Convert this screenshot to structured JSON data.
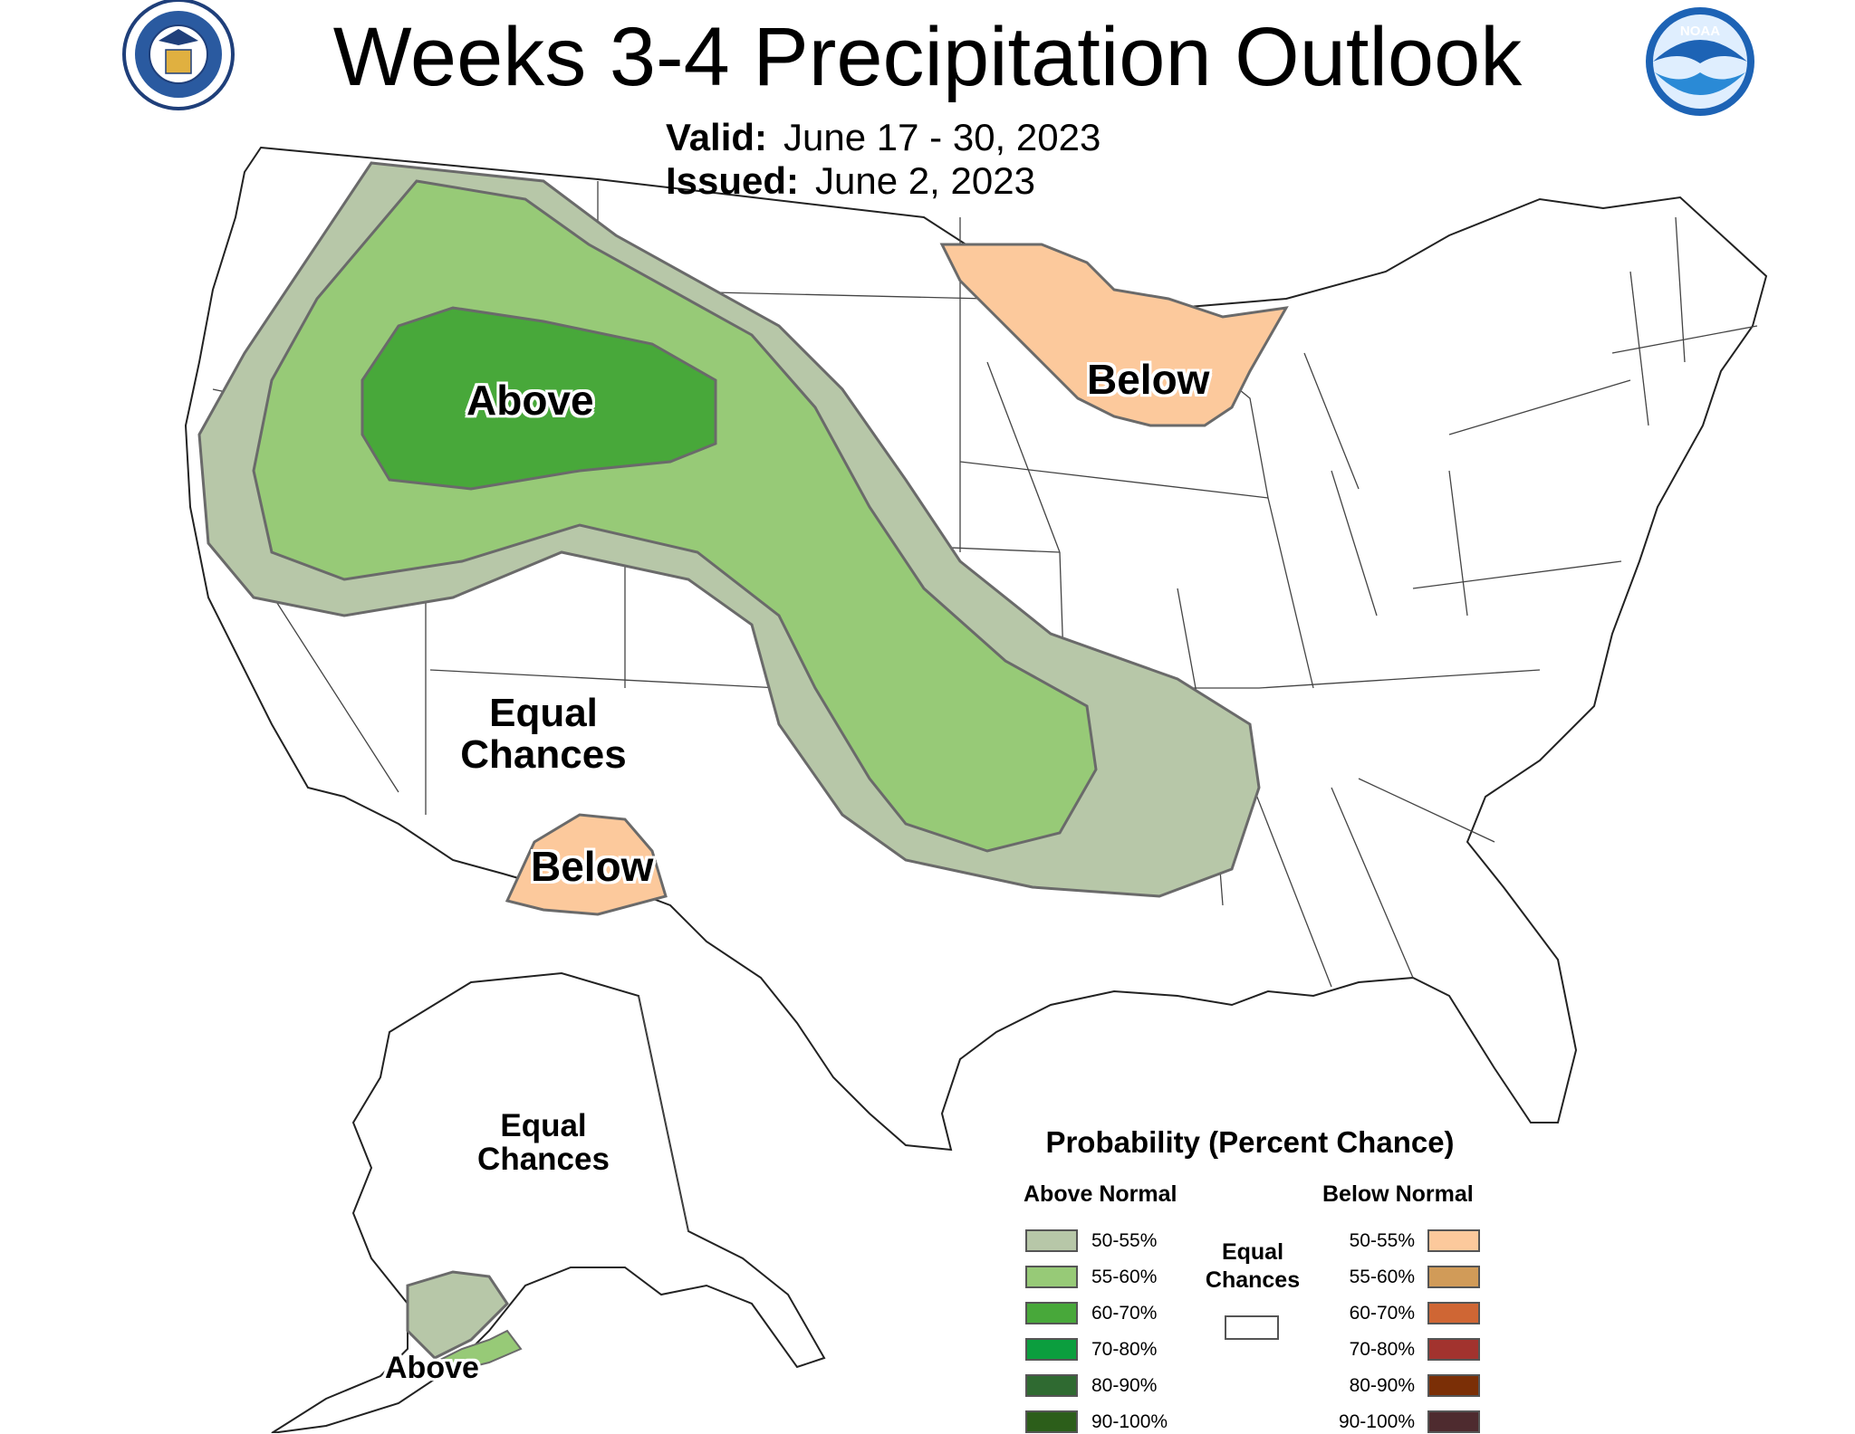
{
  "header": {
    "title": "Weeks 3-4 Precipitation Outlook",
    "valid_label": "Valid:",
    "valid_value": "June 17 - 30, 2023",
    "issued_label": "Issued:",
    "issued_value": "June 2, 2023"
  },
  "logos": {
    "commerce": {
      "text": "DEPARTMENT OF COMMERCE · UNITED STATES OF AMERICA",
      "color": "#1f3f7a"
    },
    "noaa": {
      "text": "NOAA",
      "color": "#1d63b5"
    }
  },
  "map_labels": {
    "northwest_above": "Above",
    "great_lakes_below": "Below",
    "southwest_equal_1": "Equal",
    "southwest_equal_2": "Chances",
    "southwest_below": "Below",
    "alaska_equal_1": "Equal",
    "alaska_equal_2": "Chances",
    "alaska_above": "Above"
  },
  "legend": {
    "title": "Probability (Percent Chance)",
    "above_header": "Above Normal",
    "below_header": "Below Normal",
    "equal_chances_1": "Equal",
    "equal_chances_2": "Chances",
    "equal_color": "#ffffff",
    "above": [
      {
        "range": "50-55%",
        "color": "#b7c7a8"
      },
      {
        "range": "55-60%",
        "color": "#97ca77"
      },
      {
        "range": "60-70%",
        "color": "#48a83a"
      },
      {
        "range": "70-80%",
        "color": "#0b9e3e"
      },
      {
        "range": "80-90%",
        "color": "#2f6a31"
      },
      {
        "range": "90-100%",
        "color": "#2c5e1a"
      }
    ],
    "below": [
      {
        "range": "50-55%",
        "color": "#fcc99c"
      },
      {
        "range": "55-60%",
        "color": "#d19b58"
      },
      {
        "range": "60-70%",
        "color": "#cf6634"
      },
      {
        "range": "70-80%",
        "color": "#a2332e"
      },
      {
        "range": "80-90%",
        "color": "#7b2f06"
      },
      {
        "range": "90-100%",
        "color": "#4e2b2f"
      }
    ]
  }
}
